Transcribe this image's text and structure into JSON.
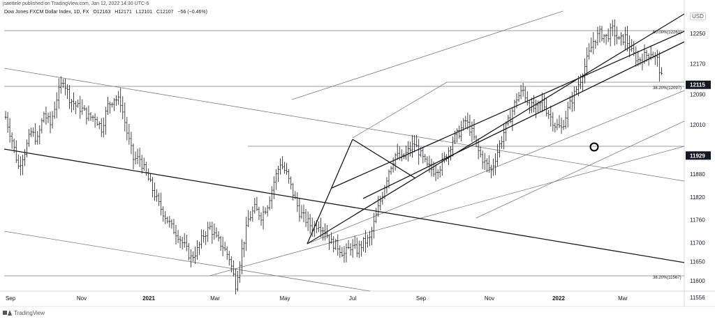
{
  "header": {
    "published": "jsaettele published on TradingView.com, Jan 12, 2022 14:30 UTC-6",
    "symbol": "Dow Jones FXCM Dollar Index, 1D, FX",
    "open": "O12163",
    "high": "H12171",
    "low": "L12101",
    "close": "C12107",
    "change": "−56 (−0.46%)"
  },
  "footer": {
    "brand": "TradingView"
  },
  "chart_data": {
    "type": "candlestick",
    "currency": "USD",
    "x_ticks": [
      "Sep",
      "Nov",
      "2021",
      "Mar",
      "May",
      "Jul",
      "Sep",
      "Nov",
      "2022",
      "Mar"
    ],
    "y_ticks": [
      12250,
      12170,
      12090,
      12010,
      11880,
      11820,
      11760,
      11700,
      11650,
      11600,
      11556
    ],
    "ylim": [
      11530,
      12300
    ],
    "price_labels": [
      {
        "value": 12115,
        "text": "12115"
      },
      {
        "value": 11929,
        "text": "11929"
      }
    ],
    "annotations": [
      {
        "text": "50.00%(12261)",
        "value": 12261
      },
      {
        "text": "38.20%(12097)",
        "value": 12097
      },
      {
        "text": "38.20%(11567)",
        "value": 11567
      }
    ],
    "price_path": [
      [
        0,
        12030
      ],
      [
        3,
        11970
      ],
      [
        6,
        11900
      ],
      [
        9,
        11940
      ],
      [
        12,
        11990
      ],
      [
        15,
        11970
      ],
      [
        18,
        12040
      ],
      [
        21,
        12010
      ],
      [
        24,
        12080
      ],
      [
        27,
        12130
      ],
      [
        30,
        12080
      ],
      [
        33,
        12060
      ],
      [
        36,
        12050
      ],
      [
        39,
        12030
      ],
      [
        42,
        12030
      ],
      [
        45,
        12000
      ],
      [
        48,
        12060
      ],
      [
        51,
        12080
      ],
      [
        54,
        12070
      ],
      [
        57,
        11990
      ],
      [
        60,
        11920
      ],
      [
        63,
        11920
      ],
      [
        66,
        11880
      ],
      [
        69,
        11840
      ],
      [
        72,
        11800
      ],
      [
        75,
        11770
      ],
      [
        78,
        11740
      ],
      [
        81,
        11720
      ],
      [
        84,
        11690
      ],
      [
        87,
        11660
      ],
      [
        90,
        11680
      ],
      [
        93,
        11720
      ],
      [
        96,
        11740
      ],
      [
        99,
        11710
      ],
      [
        102,
        11690
      ],
      [
        105,
        11660
      ],
      [
        108,
        11590
      ],
      [
        111,
        11680
      ],
      [
        114,
        11760
      ],
      [
        117,
        11790
      ],
      [
        120,
        11770
      ],
      [
        123,
        11800
      ],
      [
        126,
        11860
      ],
      [
        129,
        11910
      ],
      [
        132,
        11880
      ],
      [
        135,
        11830
      ],
      [
        138,
        11780
      ],
      [
        141,
        11760
      ],
      [
        144,
        11740
      ],
      [
        147,
        11750
      ],
      [
        150,
        11730
      ],
      [
        153,
        11700
      ],
      [
        156,
        11690
      ],
      [
        159,
        11670
      ],
      [
        162,
        11690
      ],
      [
        165,
        11680
      ],
      [
        168,
        11700
      ],
      [
        171,
        11710
      ],
      [
        174,
        11770
      ],
      [
        177,
        11830
      ],
      [
        180,
        11890
      ],
      [
        183,
        11930
      ],
      [
        186,
        11920
      ],
      [
        189,
        11940
      ],
      [
        192,
        11960
      ],
      [
        195,
        11930
      ],
      [
        198,
        11900
      ],
      [
        201,
        11890
      ],
      [
        204,
        11900
      ],
      [
        207,
        11930
      ],
      [
        210,
        11970
      ],
      [
        213,
        11990
      ],
      [
        216,
        12020
      ],
      [
        219,
        11990
      ],
      [
        222,
        11940
      ],
      [
        225,
        11910
      ],
      [
        228,
        11890
      ],
      [
        231,
        11940
      ],
      [
        234,
        11990
      ],
      [
        237,
        12030
      ],
      [
        240,
        12080
      ],
      [
        243,
        12100
      ],
      [
        246,
        12060
      ],
      [
        249,
        12050
      ],
      [
        252,
        12070
      ],
      [
        255,
        12040
      ],
      [
        258,
        12010
      ],
      [
        261,
        12000
      ],
      [
        264,
        12050
      ],
      [
        267,
        12090
      ],
      [
        270,
        12130
      ],
      [
        273,
        12180
      ],
      [
        276,
        12230
      ],
      [
        279,
        12250
      ],
      [
        282,
        12240
      ],
      [
        285,
        12260
      ],
      [
        288,
        12230
      ],
      [
        291,
        12240
      ],
      [
        294,
        12200
      ],
      [
        297,
        12180
      ],
      [
        300,
        12190
      ],
      [
        303,
        12200
      ],
      [
        306,
        12180
      ],
      [
        309,
        12110
      ]
    ]
  }
}
